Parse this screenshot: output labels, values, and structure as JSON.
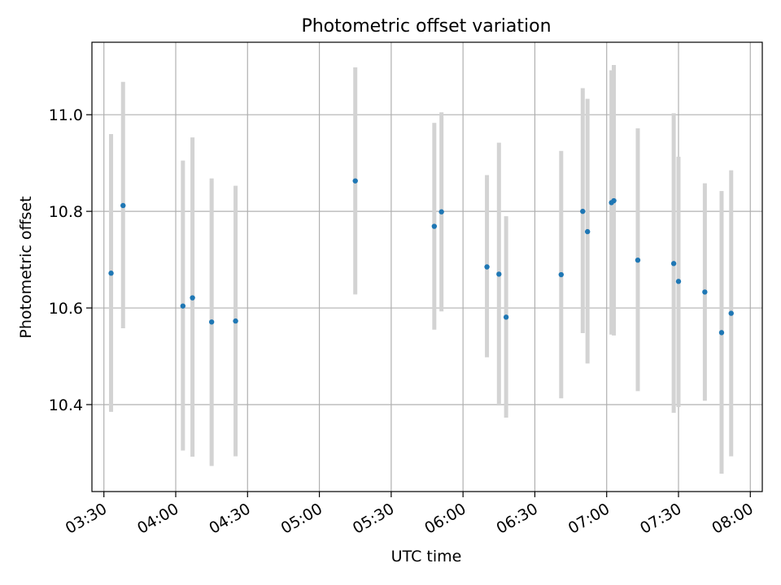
{
  "chart_data": {
    "type": "scatter",
    "title": "Photometric offset variation",
    "xlabel": "UTC time",
    "ylabel": "Photometric offset",
    "x_axis": {
      "kind": "time",
      "range": [
        "03:25",
        "08:05"
      ]
    },
    "y_axis": {
      "range": [
        10.22,
        11.15
      ]
    },
    "x_ticks": [
      "03:30",
      "04:00",
      "04:30",
      "05:00",
      "05:30",
      "06:00",
      "06:30",
      "07:00",
      "07:30",
      "08:00"
    ],
    "y_ticks": [
      10.4,
      10.6,
      10.8,
      11.0
    ],
    "y_tick_labels": [
      "10.4",
      "10.6",
      "10.8",
      "11.0"
    ],
    "grid": true,
    "marker_color": "#1f77b4",
    "errorbar_color": "#d3d3d3",
    "points": [
      {
        "time": "03:33",
        "y": 10.672,
        "lo": 10.385,
        "hi": 10.96
      },
      {
        "time": "03:38",
        "y": 10.812,
        "lo": 10.558,
        "hi": 11.068
      },
      {
        "time": "04:03",
        "y": 10.604,
        "lo": 10.305,
        "hi": 10.905
      },
      {
        "time": "04:07",
        "y": 10.621,
        "lo": 10.292,
        "hi": 10.953
      },
      {
        "time": "04:15",
        "y": 10.571,
        "lo": 10.273,
        "hi": 10.868
      },
      {
        "time": "04:25",
        "y": 10.573,
        "lo": 10.293,
        "hi": 10.853
      },
      {
        "time": "05:15",
        "y": 10.863,
        "lo": 10.628,
        "hi": 11.098
      },
      {
        "time": "05:48",
        "y": 10.769,
        "lo": 10.555,
        "hi": 10.983
      },
      {
        "time": "05:51",
        "y": 10.799,
        "lo": 10.593,
        "hi": 11.005
      },
      {
        "time": "06:10",
        "y": 10.685,
        "lo": 10.498,
        "hi": 10.875
      },
      {
        "time": "06:15",
        "y": 10.67,
        "lo": 10.4,
        "hi": 10.942
      },
      {
        "time": "06:18",
        "y": 10.581,
        "lo": 10.373,
        "hi": 10.79
      },
      {
        "time": "06:41",
        "y": 10.669,
        "lo": 10.413,
        "hi": 10.925
      },
      {
        "time": "06:50",
        "y": 10.8,
        "lo": 10.548,
        "hi": 11.055
      },
      {
        "time": "06:52",
        "y": 10.758,
        "lo": 10.485,
        "hi": 11.033
      },
      {
        "time": "07:02",
        "y": 10.818,
        "lo": 10.545,
        "hi": 11.092
      },
      {
        "time": "07:03",
        "y": 10.822,
        "lo": 10.543,
        "hi": 11.103
      },
      {
        "time": "07:13",
        "y": 10.699,
        "lo": 10.428,
        "hi": 10.972
      },
      {
        "time": "07:28",
        "y": 10.692,
        "lo": 10.383,
        "hi": 11.003
      },
      {
        "time": "07:30",
        "y": 10.655,
        "lo": 10.395,
        "hi": 10.913
      },
      {
        "time": "07:41",
        "y": 10.633,
        "lo": 10.408,
        "hi": 10.858
      },
      {
        "time": "07:48",
        "y": 10.549,
        "lo": 10.257,
        "hi": 10.842
      },
      {
        "time": "07:52",
        "y": 10.589,
        "lo": 10.293,
        "hi": 10.885
      }
    ]
  }
}
